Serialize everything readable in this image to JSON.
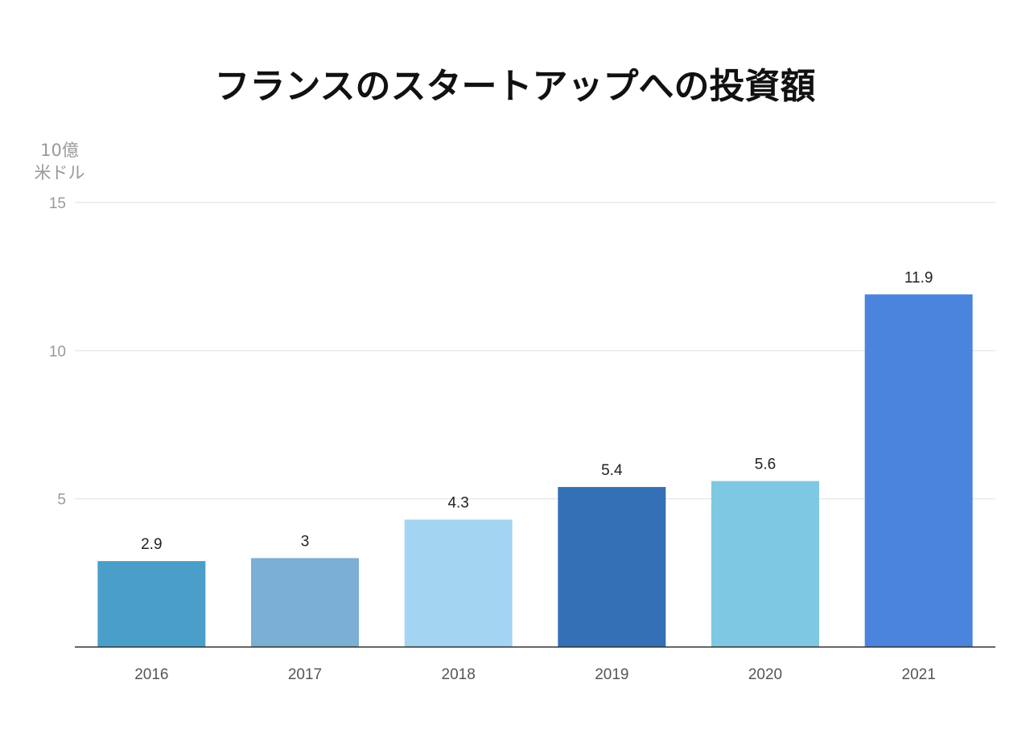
{
  "chart_data": {
    "type": "bar",
    "title": "フランスのスタートアップへの投資額",
    "ylabel_lines": [
      "10億",
      "米ドル"
    ],
    "xlabel": "",
    "categories": [
      "2016",
      "2017",
      "2018",
      "2019",
      "2020",
      "2021"
    ],
    "values": [
      2.9,
      3,
      4.3,
      5.4,
      5.6,
      11.9
    ],
    "data_labels": [
      "2.9",
      "3",
      "4.3",
      "5.4",
      "5.6",
      "11.9"
    ],
    "colors": [
      "#4a9fca",
      "#7bafd4",
      "#a3d5f3",
      "#3370b5",
      "#7ec8e3",
      "#4a84dc"
    ],
    "ylim": [
      0,
      15
    ],
    "yticks": [
      5,
      10,
      15
    ],
    "grid": true,
    "legend": "none"
  }
}
